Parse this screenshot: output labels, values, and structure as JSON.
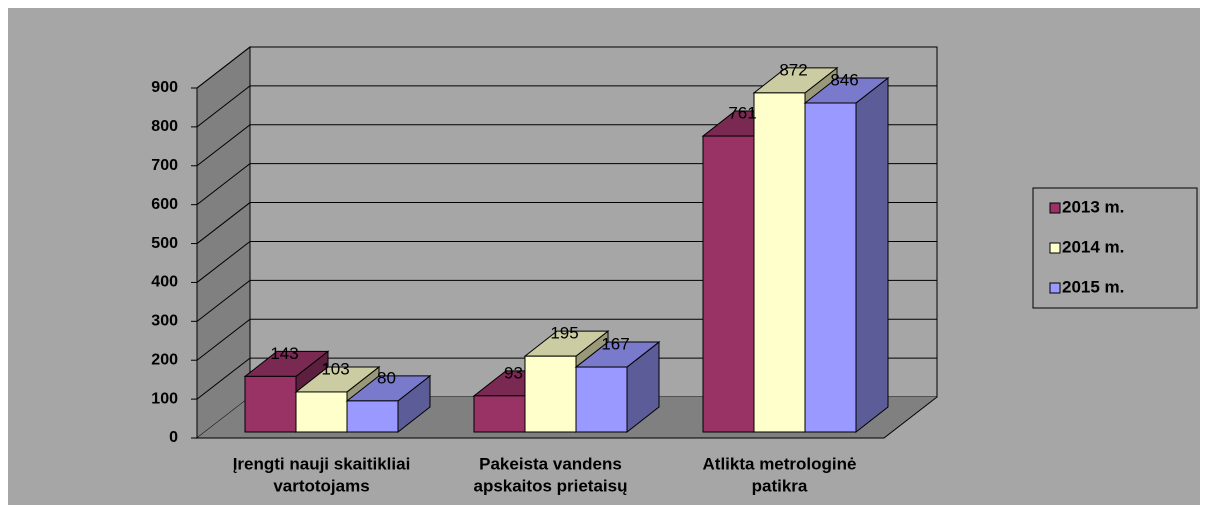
{
  "chart_data": {
    "type": "bar3d",
    "categories": [
      [
        "Įrengti nauji skaitikliai",
        "vartotojams"
      ],
      [
        "Pakeista vandens",
        "apskaitos prietaisų"
      ],
      [
        "Atlikta metrologinė",
        "patikra"
      ]
    ],
    "series": [
      {
        "name": "2013 m.",
        "color": "#993366",
        "values": [
          143,
          93,
          761
        ]
      },
      {
        "name": "2014 m.",
        "color": "#ffffcc",
        "values": [
          103,
          195,
          872
        ]
      },
      {
        "name": "2015 m.",
        "color": "#9999ff",
        "values": [
          80,
          167,
          846
        ]
      }
    ],
    "ylim": [
      0,
      900
    ],
    "yticks": [
      0,
      100,
      200,
      300,
      400,
      500,
      600,
      700,
      800,
      900
    ],
    "grid": true,
    "legend": "right"
  }
}
